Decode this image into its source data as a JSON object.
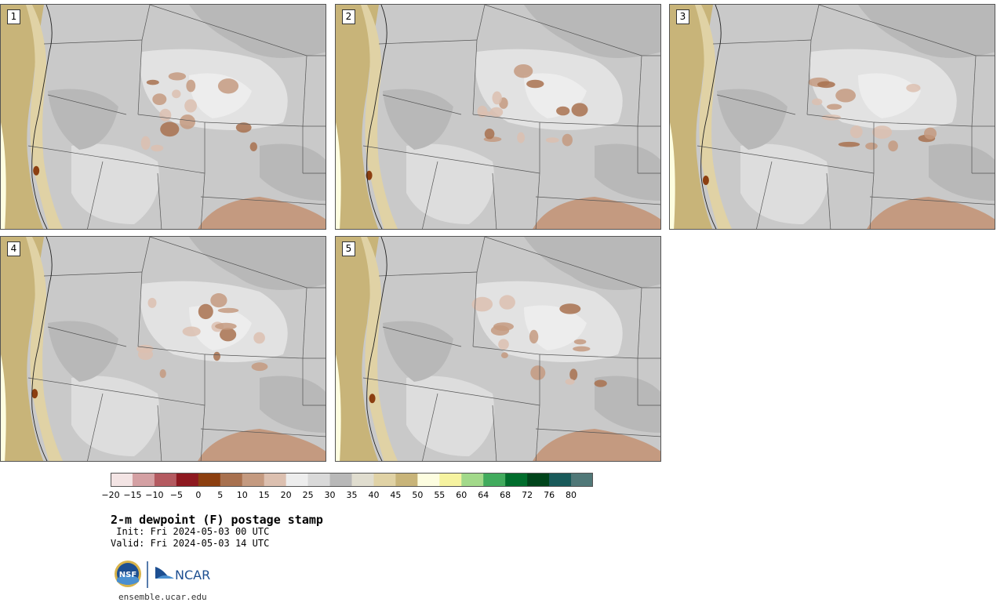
{
  "panels": [
    {
      "label": "1"
    },
    {
      "label": "2"
    },
    {
      "label": "3"
    },
    {
      "label": "4"
    },
    {
      "label": "5"
    }
  ],
  "colorbar": {
    "ticks": [
      "−20",
      "−15",
      "−10",
      "−5",
      "0",
      "5",
      "10",
      "15",
      "20",
      "25",
      "30",
      "35",
      "40",
      "45",
      "50",
      "55",
      "60",
      "64",
      "68",
      "72",
      "76",
      "80"
    ],
    "colors": [
      "#f3e4e4",
      "#d4a0a3",
      "#b45a60",
      "#8e1920",
      "#8c3f10",
      "#a8714f",
      "#c49a80",
      "#dcc0b0",
      "#ededed",
      "#d9d9d9",
      "#b8b8b8",
      "#e0ddcf",
      "#e0d2a5",
      "#c8b479",
      "#fdfde0",
      "#f6f3a0",
      "#a2d98a",
      "#41ab5d",
      "#006d2c",
      "#00441b",
      "#195a5a",
      "#507878"
    ]
  },
  "title": "2-m dewpoint (F) postage stamp",
  "init": " Init: Fri 2024-05-03 00 UTC",
  "valid": "Valid: Fri 2024-05-03 14 UTC",
  "logos": {
    "nsf": "NSF",
    "ncar": "NCAR"
  },
  "url": "ensemble.ucar.edu"
}
